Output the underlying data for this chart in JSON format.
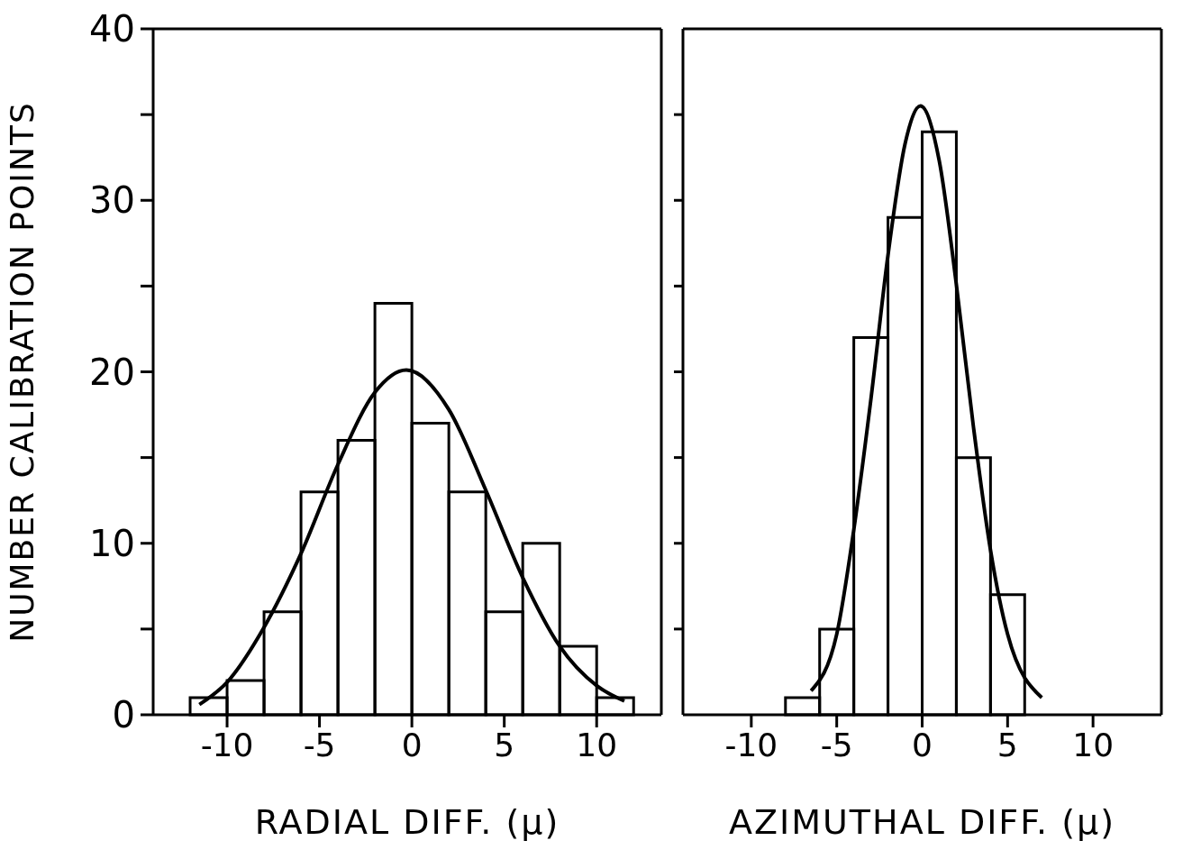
{
  "chart_data": [
    {
      "type": "histogram",
      "xlabel": "RADIAL DIFF. (μ)",
      "ylabel": "NUMBER CALIBRATION POINTS",
      "xlim": [
        -14,
        13.5
      ],
      "ylim": [
        0,
        40
      ],
      "xticks": [
        -10,
        -5,
        0,
        5,
        10
      ],
      "yticks": [
        0,
        {
          "value": 5,
          "label": null
        },
        10,
        {
          "value": 15,
          "label": null
        },
        20,
        {
          "value": 25,
          "label": null
        },
        30,
        {
          "value": 35,
          "label": null
        },
        40
      ],
      "series": [
        {
          "color": "#000000",
          "bins": [
            -12,
            -10,
            -8,
            -6,
            -4,
            -2,
            0,
            2,
            4,
            6,
            8,
            10,
            12
          ],
          "values": [
            1,
            2,
            6,
            13,
            16,
            24,
            17,
            13,
            6,
            10,
            4,
            1
          ]
        },
        {
          "type": "line",
          "color": "#000000",
          "x": [
            -11.5,
            -10,
            -8,
            -6,
            -4,
            -2,
            -0.3,
            2,
            4,
            6,
            8,
            10,
            11.5
          ],
          "values": [
            0.6,
            1.9,
            5.1,
            9.4,
            14.6,
            18.8,
            20.1,
            17.8,
            13.1,
            8.0,
            4.0,
            1.7,
            0.8
          ]
        }
      ]
    },
    {
      "type": "histogram",
      "xlabel": "AZIMUTHAL DIFF. (μ)",
      "xlim": [
        -14,
        14
      ],
      "ylim": [
        0,
        40
      ],
      "xticks": [
        -10,
        -5,
        0,
        5,
        10
      ],
      "yticks": [
        {
          "value": 5,
          "label": null
        },
        {
          "value": 10,
          "label": null
        },
        {
          "value": 15,
          "label": null
        },
        {
          "value": 20,
          "label": null
        },
        {
          "value": 25,
          "label": null
        },
        {
          "value": 30,
          "label": null
        },
        {
          "value": 35,
          "label": null
        }
      ],
      "tick_labels": "x",
      "series": [
        {
          "color": "#000000",
          "bins": [
            -8,
            -6,
            -4,
            -2,
            0,
            2,
            4,
            6
          ],
          "values": [
            1,
            5,
            22,
            29,
            34,
            15,
            7
          ]
        },
        {
          "type": "line",
          "color": "#000000",
          "x": [
            -6.5,
            -5,
            -4,
            -3,
            -2,
            -1,
            -0.1,
            1,
            2,
            3,
            4,
            5,
            7
          ],
          "values": [
            1.4,
            4.7,
            10.8,
            18.4,
            26.8,
            33.3,
            35.5,
            32.3,
            25.1,
            16.8,
            9.6,
            4.7,
            1.0
          ]
        }
      ]
    }
  ]
}
